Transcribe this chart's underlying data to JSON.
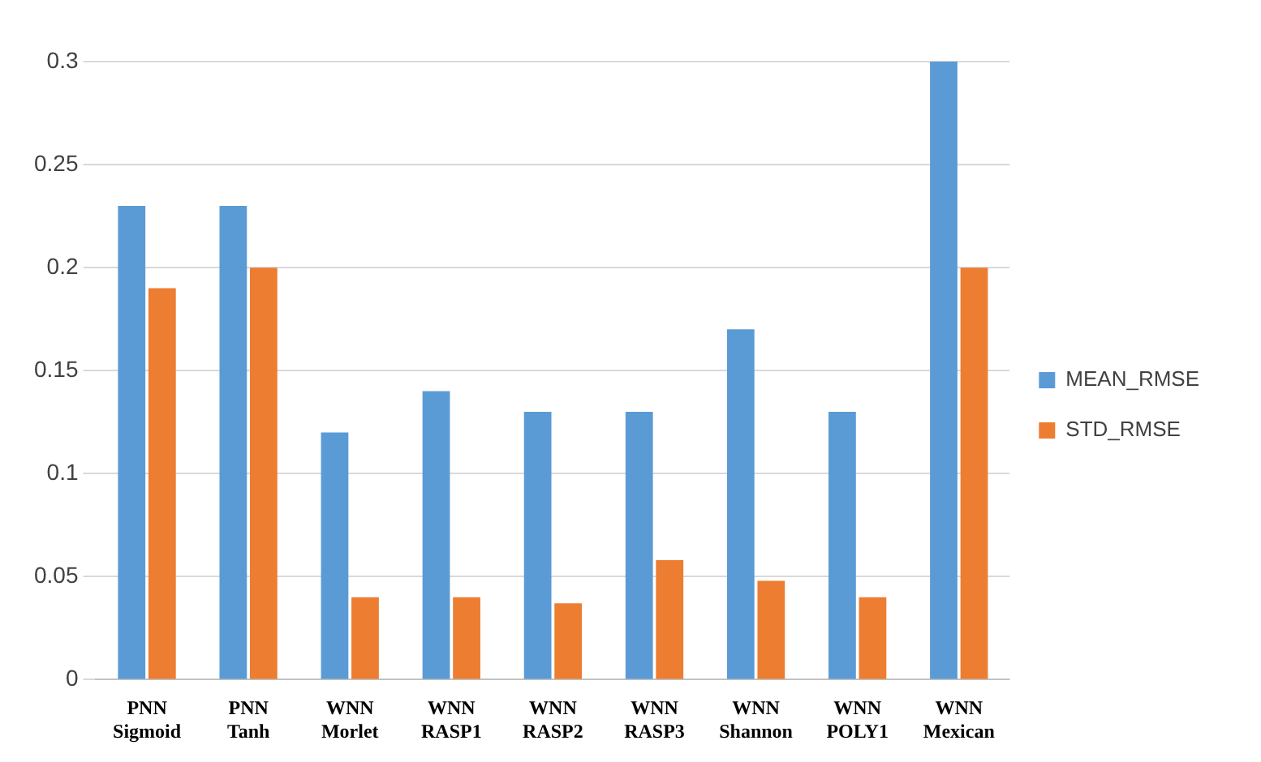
{
  "chart_data": {
    "type": "bar",
    "categories": [
      "PNN Sigmoid",
      "PNN Tanh",
      "WNN Morlet",
      "WNN RASP1",
      "WNN RASP2",
      "WNN RASP3",
      "WNN Shannon",
      "WNN POLY1",
      "WNN Mexican"
    ],
    "series": [
      {
        "name": "MEAN_RMSE",
        "color": "#5b9bd5",
        "values": [
          0.23,
          0.23,
          0.12,
          0.14,
          0.13,
          0.13,
          0.17,
          0.13,
          0.3
        ]
      },
      {
        "name": "STD_RMSE",
        "color": "#ed7d31",
        "values": [
          0.19,
          0.2,
          0.04,
          0.04,
          0.037,
          0.058,
          0.048,
          0.04,
          0.2
        ]
      }
    ],
    "ylim": [
      0,
      0.3
    ],
    "yticks": [
      0,
      0.05,
      0.1,
      0.15,
      0.2,
      0.25,
      0.3
    ],
    "grid": "y",
    "legend": "right"
  }
}
